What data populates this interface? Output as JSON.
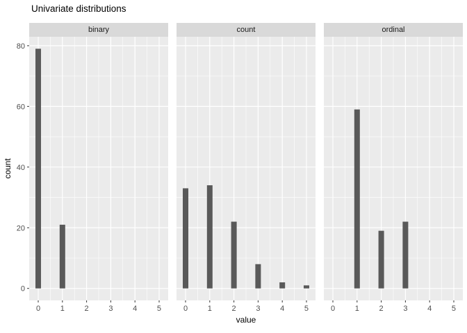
{
  "chart_data": {
    "type": "bar",
    "title": "Univariate distributions",
    "xlabel": "value",
    "ylabel": "count",
    "x_ticks": [
      0,
      1,
      2,
      3,
      4,
      5
    ],
    "y_ticks": [
      0,
      20,
      40,
      60,
      80
    ],
    "y_minor_ticks": [
      10,
      30,
      50,
      70
    ],
    "x_minor_ticks": [
      0.5,
      1.5,
      2.5,
      3.5,
      4.5
    ],
    "xlim": [
      -0.374,
      5.374
    ],
    "ylim": [
      -3.95,
      82.95
    ],
    "grid": true,
    "legend": "none",
    "facet_titles_position": "top",
    "facets": [
      {
        "label": "binary",
        "x": [
          0,
          1
        ],
        "values": [
          79,
          21
        ]
      },
      {
        "label": "count",
        "x": [
          0,
          1,
          2,
          3,
          4,
          5
        ],
        "values": [
          33,
          34,
          22,
          8,
          2,
          1
        ]
      },
      {
        "label": "ordinal",
        "x": [
          1,
          2,
          3
        ],
        "values": [
          59,
          19,
          22
        ]
      }
    ],
    "colors": {
      "bar": "#595959",
      "panel_bg": "#ebebeb",
      "strip_bg": "#d9d9d9",
      "grid": "#ffffff",
      "tick_label": "#4d4d4d",
      "tick_mark": "#333333",
      "strip_text": "#1a1a1a",
      "title_text": "#000000"
    }
  }
}
